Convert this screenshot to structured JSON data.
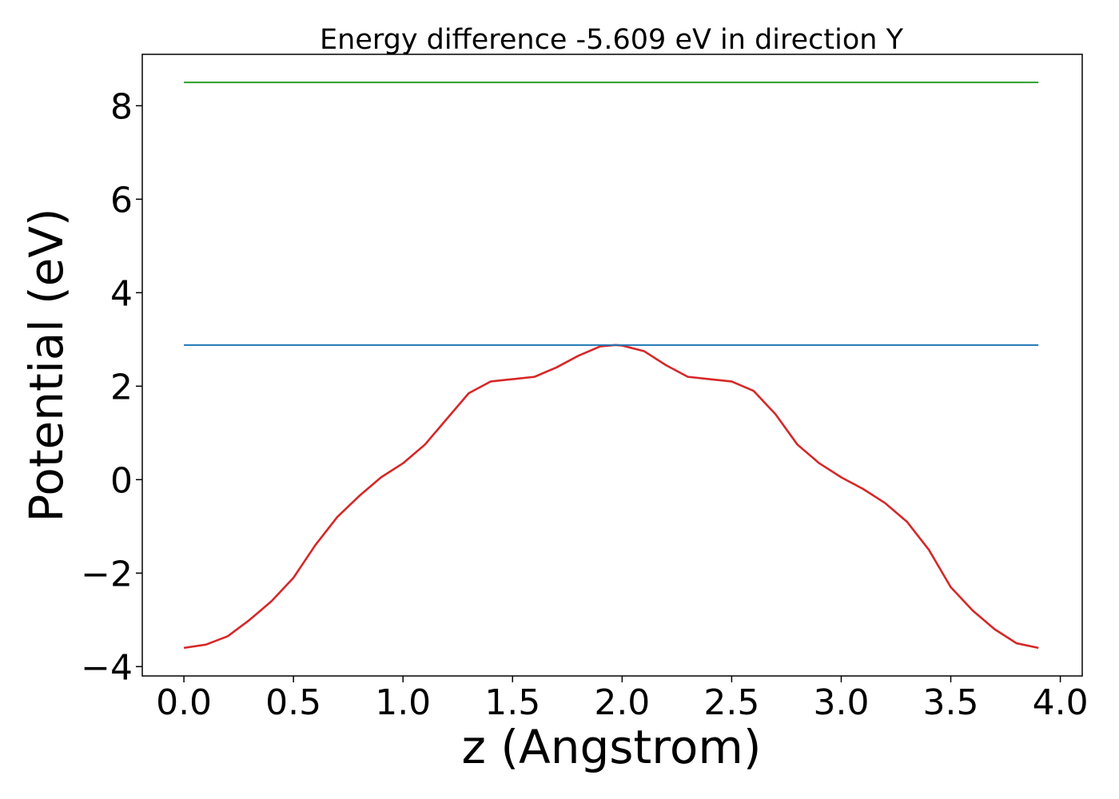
{
  "chart_data": {
    "type": "line",
    "title": "Energy difference -5.609 eV in direction Y",
    "xlabel": "z (Angstrom)",
    "ylabel": "Potential (eV)",
    "xlim": [
      -0.19,
      4.1
    ],
    "ylim": [
      -4.2,
      9.1
    ],
    "grid": false,
    "legend": "none",
    "x_ticks": [
      0.0,
      0.5,
      1.0,
      1.5,
      2.0,
      2.5,
      3.0,
      3.5,
      4.0
    ],
    "x_tick_labels": [
      "0.0",
      "0.5",
      "1.0",
      "1.5",
      "2.0",
      "2.5",
      "3.0",
      "3.5",
      "4.0"
    ],
    "y_ticks": [
      -4,
      -2,
      0,
      2,
      4,
      6,
      8
    ],
    "y_tick_labels": [
      "−4",
      "−2",
      "0",
      "2",
      "4",
      "6",
      "8"
    ],
    "series": [
      {
        "color": "#d62728",
        "x": [
          0.0,
          0.1,
          0.2,
          0.3,
          0.4,
          0.5,
          0.6,
          0.7,
          0.8,
          0.9,
          1.0,
          1.1,
          1.2,
          1.3,
          1.4,
          1.5,
          1.6,
          1.7,
          1.8,
          1.9,
          1.97,
          2.0,
          2.1,
          2.2,
          2.3,
          2.4,
          2.5,
          2.6,
          2.7,
          2.8,
          2.9,
          3.0,
          3.1,
          3.2,
          3.3,
          3.4,
          3.5,
          3.6,
          3.7,
          3.8,
          3.9
        ],
        "values": [
          -3.6,
          -3.53,
          -3.35,
          -3.0,
          -2.6,
          -2.1,
          -1.4,
          -0.8,
          -0.35,
          0.05,
          0.35,
          0.75,
          1.3,
          1.85,
          2.1,
          2.15,
          2.2,
          2.4,
          2.65,
          2.85,
          2.88,
          2.87,
          2.75,
          2.45,
          2.2,
          2.15,
          2.1,
          1.9,
          1.4,
          0.75,
          0.35,
          0.05,
          -0.2,
          -0.5,
          -0.9,
          -1.5,
          -2.3,
          -2.8,
          -3.2,
          -3.5,
          -3.6
        ]
      },
      {
        "color": "#1f77b4",
        "x": [
          0.0,
          3.9
        ],
        "values": [
          2.88,
          2.88
        ]
      },
      {
        "color": "#2ca02c",
        "x": [
          0.0,
          3.9
        ],
        "values": [
          8.5,
          8.5
        ]
      }
    ]
  }
}
